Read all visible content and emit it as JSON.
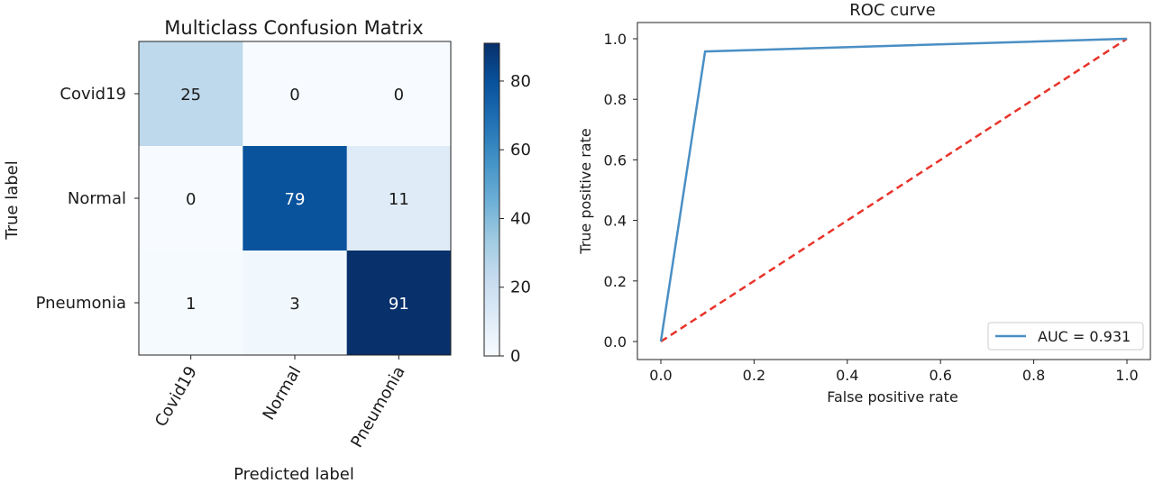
{
  "chart_data": [
    {
      "type": "heatmap",
      "title": "Multiclass Confusion Matrix",
      "xlabel": "Predicted label",
      "ylabel": "True label",
      "x_categories": [
        "Covid19",
        "Normal",
        "Pneumonia"
      ],
      "y_categories": [
        "Covid19",
        "Normal",
        "Pneumonia"
      ],
      "values": [
        [
          25,
          0,
          0
        ],
        [
          0,
          79,
          11
        ],
        [
          1,
          3,
          91
        ]
      ],
      "colormap": "Blues",
      "colorbar": {
        "range": [
          0,
          91
        ],
        "ticks": [
          0,
          20,
          40,
          60,
          80
        ]
      }
    },
    {
      "type": "line",
      "title": "ROC curve",
      "xlabel": "False positive rate",
      "ylabel": "True positive rate",
      "xlim": [
        0,
        1
      ],
      "ylim": [
        0,
        1
      ],
      "xticks": [
        0.0,
        0.2,
        0.4,
        0.6,
        0.8,
        1.0
      ],
      "yticks": [
        0.0,
        0.2,
        0.4,
        0.6,
        0.8,
        1.0
      ],
      "grid": false,
      "legend_position": "lower-right",
      "series": [
        {
          "name": "AUC = 0.931",
          "x": [
            0.0,
            0.095,
            1.0
          ],
          "y": [
            0.0,
            0.958,
            1.0
          ],
          "color": "#4a8fc4",
          "style": "solid"
        },
        {
          "x": [
            0.0,
            1.0
          ],
          "y": [
            0.0,
            1.0
          ],
          "color": "#e8332a",
          "style": "dashed"
        }
      ]
    }
  ]
}
